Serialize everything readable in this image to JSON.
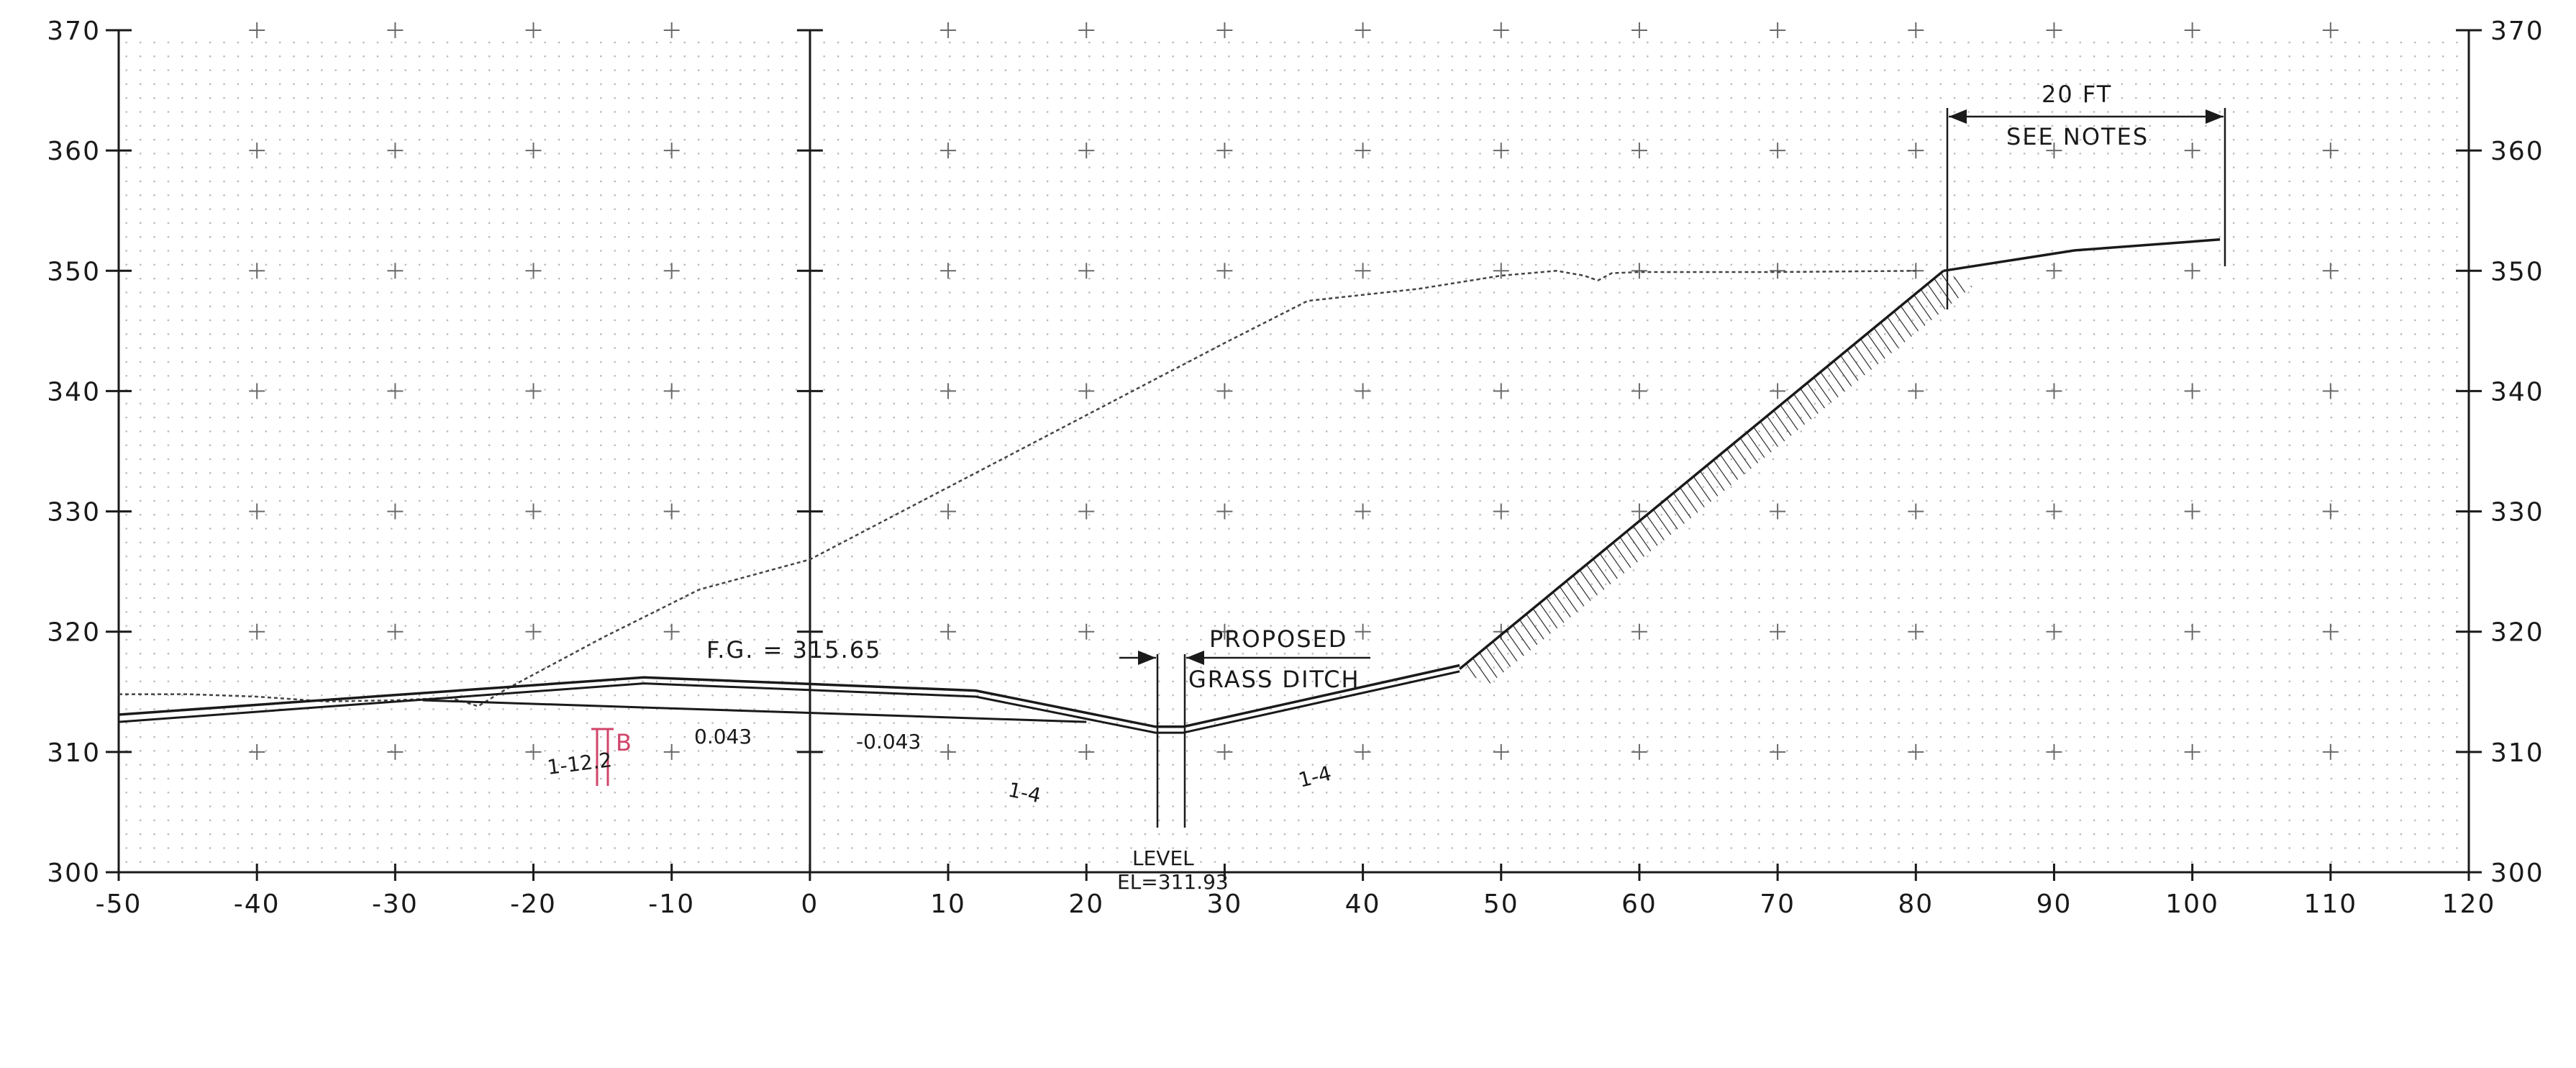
{
  "y_axis": {
    "labels": [
      "300",
      "310",
      "320",
      "330",
      "340",
      "350",
      "360",
      "370"
    ],
    "values": [
      300,
      310,
      320,
      330,
      340,
      350,
      360,
      370
    ]
  },
  "x_axis": {
    "labels": [
      "-50",
      "-40",
      "-30",
      "-20",
      "-10",
      "0",
      "10",
      "20",
      "30",
      "40",
      "50",
      "60",
      "70",
      "80",
      "90",
      "100",
      "110",
      "120"
    ],
    "values": [
      -50,
      -40,
      -30,
      -20,
      -10,
      0,
      10,
      20,
      30,
      40,
      50,
      60,
      70,
      80,
      90,
      100,
      110,
      120
    ]
  },
  "range": {
    "x": [
      -50,
      120
    ],
    "y": [
      300,
      370
    ]
  },
  "annotations": {
    "finished_grade": "F.G. = 315.65",
    "ditch_line1": "PROPOSED",
    "ditch_line2": "GRASS DITCH",
    "offset_line1": "20 FT",
    "offset_line2": "SEE NOTES",
    "level": "LEVEL",
    "elevation": "EL=311.93",
    "slope_left": "1-12.2",
    "cross_slope_left": "0.043",
    "cross_slope_right": "-0.043",
    "ditch_slope_left": "1-4",
    "ditch_slope_right": "1-4",
    "station_marker": "B"
  },
  "profiles": {
    "existing_ground": [
      [
        -50,
        314.8
      ],
      [
        -45,
        314.8
      ],
      [
        -40,
        314.6
      ],
      [
        -35,
        314.2
      ],
      [
        -30,
        314.3
      ],
      [
        -26,
        314.5
      ],
      [
        -24,
        313.8
      ],
      [
        -22,
        315.2
      ],
      [
        -15,
        319.5
      ],
      [
        -8,
        323.5
      ],
      [
        0,
        326
      ],
      [
        10,
        332
      ],
      [
        20,
        338
      ],
      [
        30,
        344
      ],
      [
        36,
        347.5
      ],
      [
        40,
        348
      ],
      [
        44,
        348.5
      ],
      [
        50,
        349.6
      ],
      [
        54,
        350
      ],
      [
        56,
        349.6
      ],
      [
        57,
        349.2
      ],
      [
        58,
        349.8
      ],
      [
        60,
        349.9
      ],
      [
        70,
        349.9
      ],
      [
        80,
        350
      ]
    ],
    "proposed_top": [
      [
        -50,
        313.1
      ],
      [
        -12,
        316.2
      ],
      [
        12,
        315.1
      ],
      [
        25,
        312.1
      ],
      [
        27,
        312.1
      ],
      [
        47,
        317.2
      ]
    ],
    "proposed_bottom": [
      [
        -50,
        312.5
      ],
      [
        -12,
        315.7
      ],
      [
        12,
        314.6
      ],
      [
        25,
        311.6
      ],
      [
        27,
        311.6
      ],
      [
        47,
        316.7
      ]
    ],
    "subgrade": [
      [
        -28,
        314.3
      ],
      [
        20,
        312.5
      ]
    ],
    "cut_slope": [
      [
        47,
        316.9
      ],
      [
        82,
        350
      ]
    ],
    "upper_ground": [
      [
        82,
        350
      ],
      [
        91.5,
        351.7
      ],
      [
        102,
        352.6
      ]
    ]
  },
  "colors": {
    "grid": "#a8a8a8",
    "line": "#1a1a1a",
    "existing": "#444444",
    "marker": "#d0456a"
  }
}
